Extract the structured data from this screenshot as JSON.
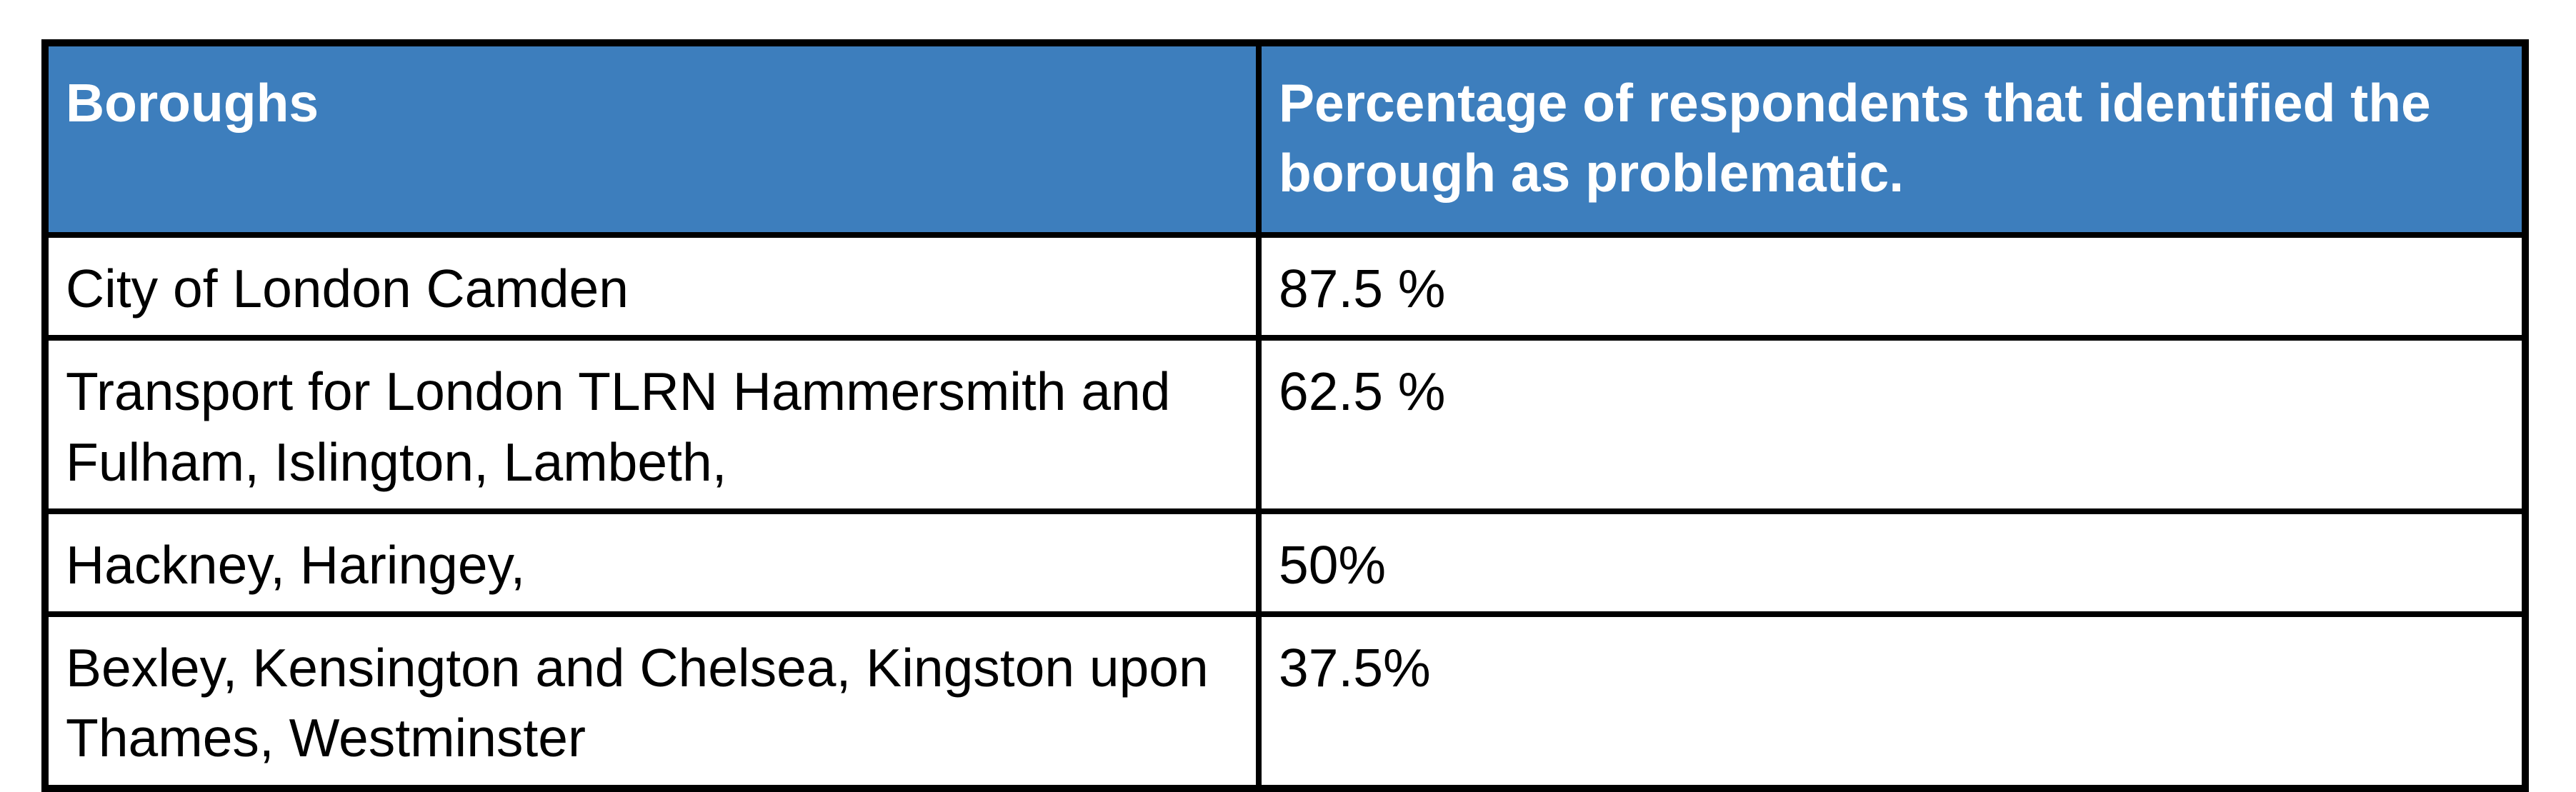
{
  "theme": {
    "header_bg": "#3D7EBD",
    "header_text_color": "#FFFFFF",
    "body_text_color": "#000000",
    "border_color": "#000000",
    "page_bg": "#FFFFFF"
  },
  "table": {
    "columns": [
      {
        "key": "boroughs",
        "label": "Boroughs"
      },
      {
        "key": "percentage",
        "label": "Percentage of respondents that identified the borough as problematic."
      }
    ],
    "rows": [
      {
        "boroughs": "City of London Camden",
        "percentage": "87.5 %"
      },
      {
        "boroughs": "Transport for London TLRN Hammersmith and Fulham, Islington, Lambeth,",
        "percentage": "62.5 %"
      },
      {
        "boroughs": "Hackney, Haringey,",
        "percentage": "50%"
      },
      {
        "boroughs": "Bexley, Kensington and Chelsea, Kingston upon Thames, Westminster",
        "percentage": "37.5%"
      }
    ]
  }
}
